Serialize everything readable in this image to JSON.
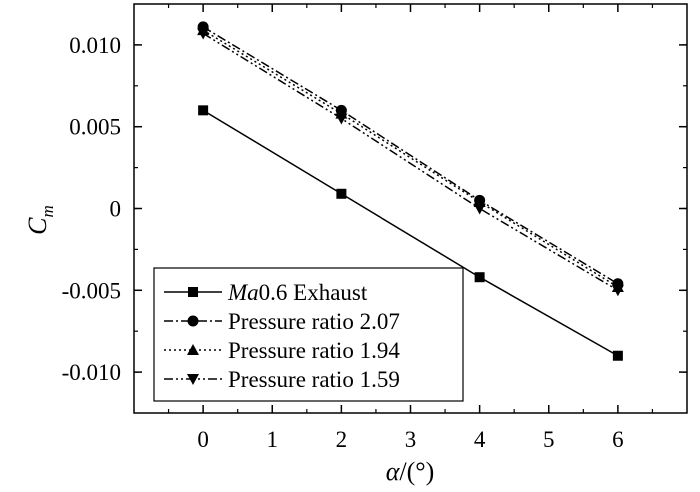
{
  "chart_data": {
    "type": "line",
    "xlabel": {
      "symbol": "α",
      "unit": "/(°)"
    },
    "ylabel": {
      "symbol": "C",
      "subscript": "m"
    },
    "xlim": [
      -1,
      7
    ],
    "ylim": [
      -0.0125,
      0.0125
    ],
    "xticks": [
      0,
      1,
      2,
      3,
      4,
      5,
      6
    ],
    "xtick_labels": [
      "0",
      "1",
      "2",
      "3",
      "4",
      "5",
      "6"
    ],
    "yticks": [
      0.01,
      0.005,
      0,
      -0.005,
      -0.01
    ],
    "ytick_labels": [
      "0.010",
      "0.005",
      "0",
      "-0.005",
      "-0.010"
    ],
    "grid": false,
    "legend_position": "bottom-left",
    "series": [
      {
        "name": "Ma0.6 Exhaust",
        "name_parts": {
          "italic": "Ma",
          "rest": "0.6 Exhaust"
        },
        "marker": "square",
        "dash": "solid",
        "x": [
          0,
          2,
          4,
          6
        ],
        "y": [
          0.006,
          0.0009,
          -0.0042,
          -0.009
        ]
      },
      {
        "name": "Pressure ratio 2.07",
        "marker": "circle",
        "dash": "dashdot",
        "x": [
          0,
          2,
          4,
          6
        ],
        "y": [
          0.0111,
          0.006,
          0.0005,
          -0.0046
        ]
      },
      {
        "name": "Pressure ratio 1.94",
        "marker": "triangle-up",
        "dash": "dotted",
        "x": [
          0,
          2,
          4,
          6
        ],
        "y": [
          0.0109,
          0.0058,
          0.0004,
          -0.0048
        ]
      },
      {
        "name": "Pressure ratio 1.59",
        "marker": "triangle-down",
        "dash": "dashdotdot",
        "x": [
          0,
          2,
          4,
          6
        ],
        "y": [
          0.0107,
          0.0055,
          0.0,
          -0.005
        ]
      }
    ]
  }
}
